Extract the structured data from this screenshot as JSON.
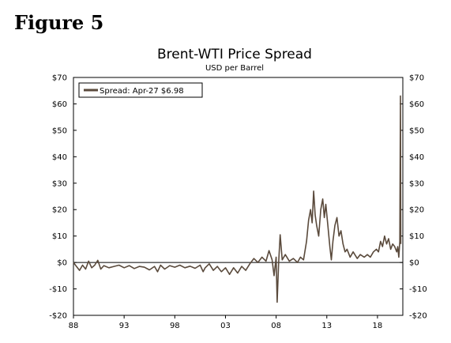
{
  "figure_label": "Figure 5",
  "chart_data": {
    "type": "line",
    "title": "Brent-WTI Price Spread",
    "subtitle": "USD per Barrel",
    "xlabel": "",
    "ylabel": "",
    "xlim": [
      1988,
      2020.5
    ],
    "ylim": [
      -20,
      70
    ],
    "x_tick_labels": [
      {
        "x": 1988,
        "label": "88"
      },
      {
        "x": 1993,
        "label": "93"
      },
      {
        "x": 1998,
        "label": "98"
      },
      {
        "x": 2003,
        "label": "03"
      },
      {
        "x": 2008,
        "label": "08"
      },
      {
        "x": 2013,
        "label": "13"
      },
      {
        "x": 2018,
        "label": "18"
      }
    ],
    "y_tick_labels": [
      {
        "y": 70,
        "label": "$70"
      },
      {
        "y": 60,
        "label": "$60"
      },
      {
        "y": 50,
        "label": "$50"
      },
      {
        "y": 40,
        "label": "$40"
      },
      {
        "y": 30,
        "label": "$30"
      },
      {
        "y": 20,
        "label": "$20"
      },
      {
        "y": 10,
        "label": "$10"
      },
      {
        "y": 0,
        "label": "$0"
      },
      {
        "y": -10,
        "label": "-$10"
      },
      {
        "y": -20,
        "label": "-$20"
      }
    ],
    "grid": false,
    "zero_line": true,
    "legend_position": "top-left",
    "series": [
      {
        "name": "Spread: Apr-27 $6.98",
        "color": "#5a4a3c",
        "points": [
          [
            1988.0,
            0.0
          ],
          [
            1988.3,
            -1.5
          ],
          [
            1988.6,
            -3.0
          ],
          [
            1988.9,
            -1.0
          ],
          [
            1989.2,
            -2.5
          ],
          [
            1989.5,
            0.5
          ],
          [
            1989.8,
            -2.0
          ],
          [
            1990.1,
            -1.0
          ],
          [
            1990.4,
            0.8
          ],
          [
            1990.7,
            -2.5
          ],
          [
            1991.0,
            -1.2
          ],
          [
            1991.5,
            -2.0
          ],
          [
            1992.0,
            -1.5
          ],
          [
            1992.5,
            -1.0
          ],
          [
            1993.0,
            -2.0
          ],
          [
            1993.5,
            -1.2
          ],
          [
            1994.0,
            -2.3
          ],
          [
            1994.5,
            -1.5
          ],
          [
            1995.0,
            -1.8
          ],
          [
            1995.5,
            -2.8
          ],
          [
            1996.0,
            -1.5
          ],
          [
            1996.3,
            -3.5
          ],
          [
            1996.6,
            -1.0
          ],
          [
            1997.0,
            -2.5
          ],
          [
            1997.5,
            -1.2
          ],
          [
            1998.0,
            -1.8
          ],
          [
            1998.5,
            -1.0
          ],
          [
            1999.0,
            -2.0
          ],
          [
            1999.5,
            -1.4
          ],
          [
            2000.0,
            -2.2
          ],
          [
            2000.5,
            -1.0
          ],
          [
            2000.8,
            -3.5
          ],
          [
            2001.0,
            -2.0
          ],
          [
            2001.4,
            -0.5
          ],
          [
            2001.8,
            -3.0
          ],
          [
            2002.2,
            -1.5
          ],
          [
            2002.6,
            -3.5
          ],
          [
            2003.0,
            -2.0
          ],
          [
            2003.4,
            -4.5
          ],
          [
            2003.8,
            -2.0
          ],
          [
            2004.2,
            -4.0
          ],
          [
            2004.6,
            -1.5
          ],
          [
            2005.0,
            -3.0
          ],
          [
            2005.4,
            -0.5
          ],
          [
            2005.8,
            1.5
          ],
          [
            2006.2,
            0.0
          ],
          [
            2006.6,
            2.0
          ],
          [
            2007.0,
            0.5
          ],
          [
            2007.3,
            4.5
          ],
          [
            2007.6,
            1.0
          ],
          [
            2007.8,
            -5.0
          ],
          [
            2008.0,
            2.0
          ],
          [
            2008.1,
            -15.0
          ],
          [
            2008.25,
            0.0
          ],
          [
            2008.4,
            10.5
          ],
          [
            2008.6,
            1.0
          ],
          [
            2008.9,
            3.0
          ],
          [
            2009.3,
            0.5
          ],
          [
            2009.7,
            1.5
          ],
          [
            2010.1,
            0.0
          ],
          [
            2010.4,
            2.0
          ],
          [
            2010.7,
            1.0
          ],
          [
            2011.0,
            8.0
          ],
          [
            2011.2,
            16.0
          ],
          [
            2011.4,
            20.0
          ],
          [
            2011.55,
            15.0
          ],
          [
            2011.7,
            27.0
          ],
          [
            2011.85,
            18.0
          ],
          [
            2012.0,
            14.0
          ],
          [
            2012.2,
            10.0
          ],
          [
            2012.4,
            20.0
          ],
          [
            2012.6,
            24.0
          ],
          [
            2012.75,
            17.0
          ],
          [
            2012.9,
            22.0
          ],
          [
            2013.1,
            14.0
          ],
          [
            2013.3,
            6.0
          ],
          [
            2013.45,
            1.0
          ],
          [
            2013.6,
            8.0
          ],
          [
            2013.8,
            14.0
          ],
          [
            2014.0,
            17.0
          ],
          [
            2014.2,
            10.0
          ],
          [
            2014.4,
            12.0
          ],
          [
            2014.6,
            7.0
          ],
          [
            2014.8,
            4.0
          ],
          [
            2015.0,
            5.0
          ],
          [
            2015.3,
            2.0
          ],
          [
            2015.6,
            4.0
          ],
          [
            2016.0,
            1.5
          ],
          [
            2016.3,
            3.0
          ],
          [
            2016.7,
            2.0
          ],
          [
            2017.0,
            3.0
          ],
          [
            2017.3,
            2.0
          ],
          [
            2017.6,
            4.0
          ],
          [
            2017.9,
            5.0
          ],
          [
            2018.1,
            4.0
          ],
          [
            2018.3,
            8.0
          ],
          [
            2018.5,
            6.0
          ],
          [
            2018.7,
            10.0
          ],
          [
            2018.9,
            7.0
          ],
          [
            2019.1,
            9.0
          ],
          [
            2019.3,
            5.0
          ],
          [
            2019.5,
            7.0
          ],
          [
            2019.7,
            6.0
          ],
          [
            2019.9,
            4.0
          ],
          [
            2020.0,
            6.0
          ],
          [
            2020.1,
            2.0
          ],
          [
            2020.2,
            8.0
          ],
          [
            2020.27,
            63.0
          ],
          [
            2020.3,
            7.0
          ]
        ]
      }
    ]
  }
}
